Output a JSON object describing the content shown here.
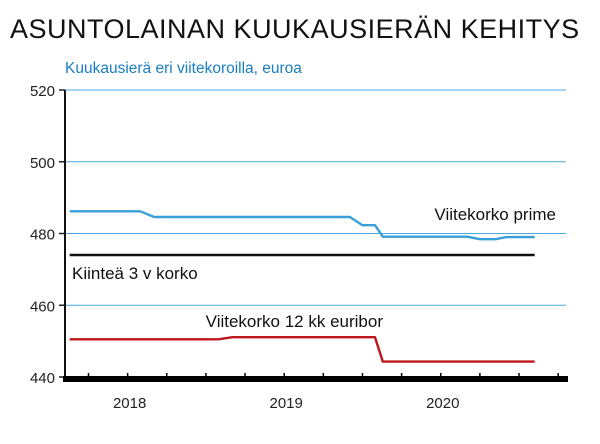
{
  "chart_data": {
    "type": "line",
    "title": "ASUNTOLAINAN KUUKAUSIERÄN KEHITYS",
    "subtitle": "Kuukausierä eri viitekoroilla, euroa",
    "ylim": [
      440,
      520
    ],
    "yticks": [
      440,
      460,
      480,
      500,
      520
    ],
    "xlim": [
      2017.6,
      2020.8
    ],
    "xticks": [
      {
        "label": "2018",
        "value": 2018.0
      },
      {
        "label": "2019",
        "value": 2019.0
      },
      {
        "label": "2020",
        "value": 2020.0
      }
    ],
    "grid": true,
    "series": [
      {
        "name": "Viitekorko prime",
        "color": "#3a9fd8",
        "points": [
          [
            2017.63,
            486.2
          ],
          [
            2018.08,
            486.2
          ],
          [
            2018.17,
            484.6
          ],
          [
            2019.42,
            484.6
          ],
          [
            2019.5,
            482.3
          ],
          [
            2019.58,
            482.3
          ],
          [
            2019.63,
            479.1
          ],
          [
            2020.17,
            479.1
          ],
          [
            2020.25,
            478.4
          ],
          [
            2020.35,
            478.4
          ],
          [
            2020.42,
            479.0
          ],
          [
            2020.6,
            479.0
          ]
        ]
      },
      {
        "name": "Kiinteä 3 v korko",
        "color": "#111111",
        "points": [
          [
            2017.63,
            474.0
          ],
          [
            2020.6,
            474.0
          ]
        ]
      },
      {
        "name": "Viitekorko 12 kk euribor",
        "color": "#c0161e",
        "points": [
          [
            2017.63,
            450.5
          ],
          [
            2018.58,
            450.5
          ],
          [
            2018.67,
            451.1
          ],
          [
            2019.58,
            451.1
          ],
          [
            2019.63,
            444.3
          ],
          [
            2020.6,
            444.3
          ]
        ]
      }
    ]
  }
}
